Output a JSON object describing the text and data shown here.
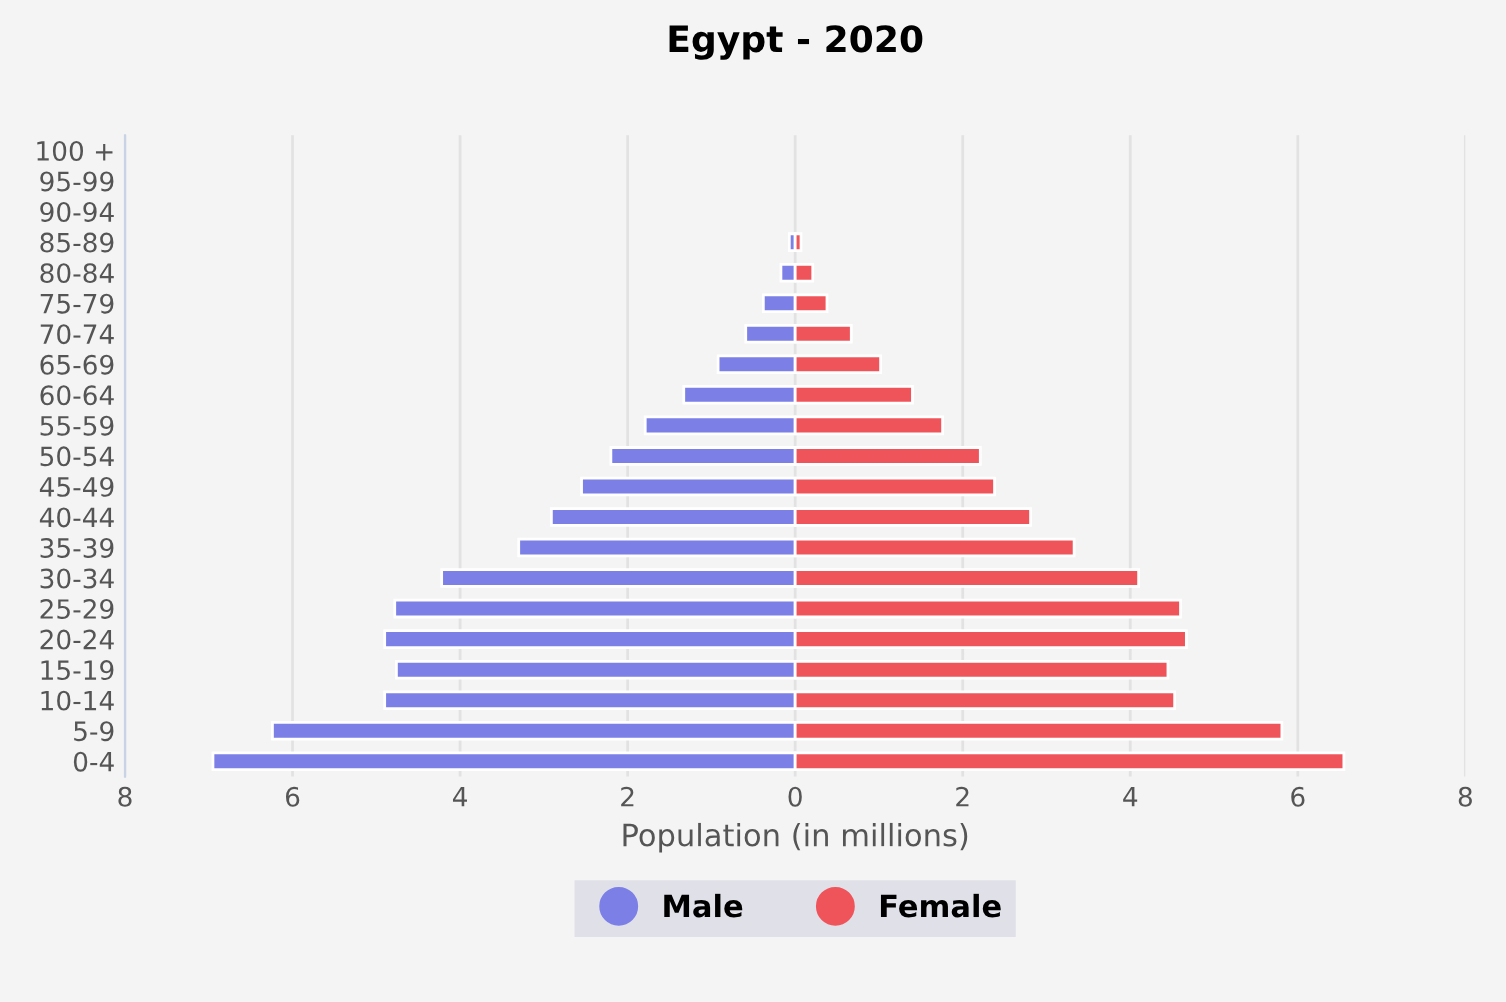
{
  "chart_data": {
    "type": "bar",
    "orientation": "horizontal",
    "title": "Egypt - 2020",
    "xlabel": "Population (in millions)",
    "categories": [
      "100 +",
      "95-99",
      "90-94",
      "85-89",
      "80-84",
      "75-79",
      "70-74",
      "65-69",
      "60-64",
      "55-59",
      "50-54",
      "45-49",
      "40-44",
      "35-39",
      "30-34",
      "25-29",
      "20-24",
      "15-19",
      "10-14",
      "5-9",
      "0-4"
    ],
    "series": [
      {
        "name": "Male",
        "color": "#7b7fe6",
        "values": [
          0,
          0,
          0,
          -0.07,
          -0.17,
          -0.38,
          -0.59,
          -0.92,
          -1.33,
          -1.79,
          -2.2,
          -2.55,
          -2.91,
          -3.3,
          -4.22,
          -4.78,
          -4.9,
          -4.76,
          -4.9,
          -6.24,
          -6.95
        ]
      },
      {
        "name": "Female",
        "color": "#f0545b",
        "values": [
          0,
          0,
          0,
          0.07,
          0.21,
          0.38,
          0.67,
          1.02,
          1.4,
          1.76,
          2.21,
          2.38,
          2.81,
          3.33,
          4.1,
          4.6,
          4.67,
          4.45,
          4.53,
          5.81,
          6.55
        ]
      }
    ],
    "xlim": [
      -8,
      8
    ],
    "xticks": [
      {
        "value": -8,
        "label": "8"
      },
      {
        "value": -6,
        "label": "6"
      },
      {
        "value": -4,
        "label": "4"
      },
      {
        "value": -2,
        "label": "2"
      },
      0,
      2,
      4,
      6,
      8
    ],
    "grid": "x",
    "legend": "bottom",
    "stacked": true
  }
}
